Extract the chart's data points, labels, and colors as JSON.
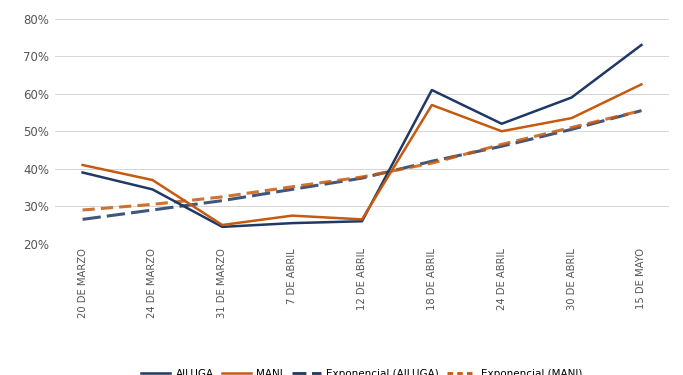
{
  "x_labels": [
    "20 DE MARZO",
    "24 DE MARZO",
    "31 DE MARZO",
    "7 DE ABRIL",
    "12 DE ABRIL",
    "18 DE ABRIL",
    "24 DE ABRIL",
    "30 DE ABRIL",
    "15 DE MAYO"
  ],
  "x_indices": [
    0,
    1,
    2,
    3,
    4,
    5,
    6,
    7,
    8
  ],
  "AILUGA": [
    0.39,
    0.345,
    0.245,
    0.255,
    0.26,
    0.61,
    0.52,
    0.59,
    0.73
  ],
  "MANI": [
    0.41,
    0.37,
    0.25,
    0.275,
    0.265,
    0.57,
    0.5,
    0.535,
    0.625
  ],
  "exp_AILUGA": [
    0.265,
    0.29,
    0.315,
    0.345,
    0.375,
    0.42,
    0.46,
    0.505,
    0.555
  ],
  "exp_MANI": [
    0.29,
    0.305,
    0.325,
    0.352,
    0.378,
    0.415,
    0.465,
    0.51,
    0.555
  ],
  "color_ailuga": "#1F3864",
  "color_mani": "#C55A11",
  "ylim": [
    0.2,
    0.82
  ],
  "yticks": [
    0.2,
    0.3,
    0.4,
    0.5,
    0.6,
    0.7,
    0.8
  ],
  "legend_labels": [
    "AILUGA",
    "MANI",
    "Exponencial (AILUGA)",
    "Exponencial (MANI)"
  ],
  "background_color": "#ffffff",
  "grid_color": "#d0d0d0",
  "linewidth_main": 1.8,
  "linewidth_exp": 2.2
}
